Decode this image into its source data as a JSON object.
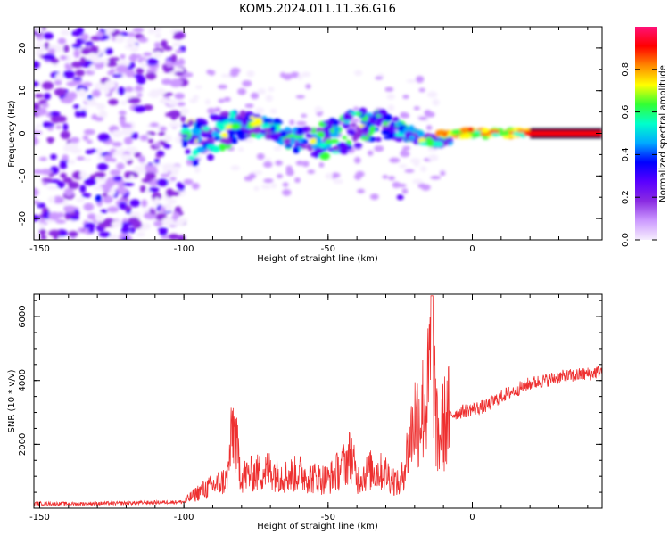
{
  "title": "KOM5.2024.011.11.36.G16",
  "colors": {
    "snr_line": "#ee3030",
    "colormap": [
      "#f6eefe",
      "#cc99ff",
      "#8a2be2",
      "#5a00ff",
      "#0000ff",
      "#00aaff",
      "#00ffcc",
      "#33ff33",
      "#ffff00",
      "#ff8800",
      "#ff0000",
      "#ff1177"
    ]
  },
  "chart_data": [
    {
      "type": "heatmap",
      "xlabel": "Height of straight line (km)",
      "ylabel": "Frequency (Hz)",
      "xlim": [
        -152,
        45
      ],
      "ylim": [
        -25,
        25
      ],
      "xticks": [
        -150,
        -100,
        -50,
        0
      ],
      "yticks": [
        -20,
        -10,
        0,
        10,
        20
      ],
      "colorbar": {
        "label": "Normalized spectral amplitude",
        "range": [
          0,
          1
        ],
        "ticks": [
          0.0,
          0.2,
          0.4,
          0.6,
          0.8
        ]
      },
      "features": [
        {
          "x": [
            -150,
            -100
          ],
          "y": [
            -25,
            25
          ],
          "amplitude": 0.15,
          "description": "diffuse noise"
        },
        {
          "x": [
            -100,
            -10
          ],
          "y": [
            -8,
            8
          ],
          "amplitude": 0.35
        },
        {
          "x": [
            -10,
            20
          ],
          "y": [
            -1,
            1
          ],
          "amplitude": 0.85
        },
        {
          "x": [
            20,
            45
          ],
          "y": [
            -0.5,
            0.5
          ],
          "amplitude": 0.95
        }
      ]
    },
    {
      "type": "line",
      "xlabel": "Height of straight line (km)",
      "ylabel": "SNR (10 * v/v)",
      "xlim": [
        -152,
        45
      ],
      "ylim": [
        0,
        6700
      ],
      "xticks": [
        -150,
        -100,
        -50,
        0
      ],
      "yticks": [
        2000,
        4000,
        6000
      ],
      "series": [
        {
          "x": [
            -152,
            -140,
            -120,
            -100,
            -95,
            -90,
            -85,
            -83,
            -80,
            -75,
            -70,
            -65,
            -60,
            -55,
            -50,
            -45,
            -42,
            -40,
            -35,
            -30,
            -25,
            -20,
            -18,
            -16,
            -15,
            -14,
            -13,
            -12,
            -10,
            -8,
            -5,
            0,
            5,
            10,
            15,
            20,
            25,
            30,
            35,
            40,
            45
          ],
          "y": [
            150,
            140,
            160,
            200,
            500,
            700,
            900,
            2550,
            1000,
            1100,
            1200,
            1000,
            1100,
            950,
            900,
            1300,
            1700,
            900,
            1200,
            1100,
            700,
            2800,
            3000,
            3300,
            3800,
            6650,
            3500,
            2000,
            2600,
            2900,
            3000,
            3100,
            3200,
            3500,
            3700,
            3900,
            4000,
            4100,
            4150,
            4200,
            4300
          ]
        }
      ]
    }
  ]
}
